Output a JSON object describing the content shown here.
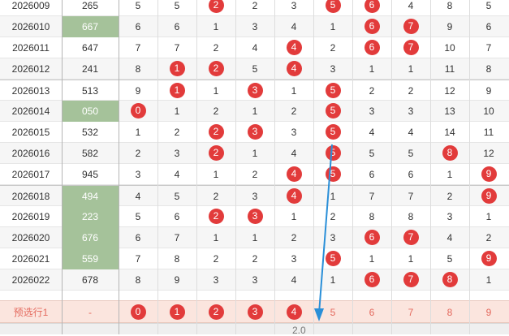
{
  "rows": [
    {
      "issue": "2026009",
      "sum": "265",
      "sum_hl": false,
      "digits": [
        "5",
        "5",
        "2",
        "2",
        "3",
        "5",
        "6",
        "4",
        "8",
        "5"
      ],
      "balls": [
        2,
        5,
        6
      ]
    },
    {
      "issue": "2026010",
      "sum": "667",
      "sum_hl": true,
      "digits": [
        "6",
        "6",
        "1",
        "3",
        "4",
        "1",
        "6",
        "7",
        "9",
        "6"
      ],
      "balls": [
        6,
        7
      ]
    },
    {
      "issue": "2026011",
      "sum": "647",
      "sum_hl": false,
      "digits": [
        "7",
        "7",
        "2",
        "4",
        "4",
        "2",
        "6",
        "7",
        "10",
        "7"
      ],
      "balls": [
        4,
        6,
        7
      ]
    },
    {
      "issue": "2026012",
      "sum": "241",
      "sum_hl": false,
      "digits": [
        "8",
        "1",
        "2",
        "5",
        "4",
        "3",
        "1",
        "1",
        "11",
        "8"
      ],
      "balls": [
        1,
        2,
        4
      ]
    },
    {
      "issue": "2026013",
      "sum": "513",
      "sum_hl": false,
      "digits": [
        "9",
        "1",
        "1",
        "3",
        "1",
        "5",
        "2",
        "2",
        "12",
        "9"
      ],
      "balls": [
        1,
        3,
        5
      ]
    },
    {
      "issue": "2026014",
      "sum": "050",
      "sum_hl": true,
      "digits": [
        "0",
        "1",
        "2",
        "1",
        "2",
        "5",
        "3",
        "3",
        "13",
        "10"
      ],
      "balls": [
        0,
        5
      ]
    },
    {
      "issue": "2026015",
      "sum": "532",
      "sum_hl": false,
      "digits": [
        "1",
        "2",
        "2",
        "3",
        "3",
        "5",
        "4",
        "4",
        "14",
        "11"
      ],
      "balls": [
        2,
        3,
        5
      ]
    },
    {
      "issue": "2026016",
      "sum": "582",
      "sum_hl": false,
      "digits": [
        "2",
        "3",
        "2",
        "1",
        "4",
        "5",
        "5",
        "5",
        "8",
        "12"
      ],
      "balls": [
        2,
        5,
        8
      ]
    },
    {
      "issue": "2026017",
      "sum": "945",
      "sum_hl": false,
      "digits": [
        "3",
        "4",
        "1",
        "2",
        "4",
        "5",
        "6",
        "6",
        "1",
        "9"
      ],
      "balls": [
        4,
        5,
        9
      ]
    },
    {
      "issue": "2026018",
      "sum": "494",
      "sum_hl": true,
      "digits": [
        "4",
        "5",
        "2",
        "3",
        "4",
        "1",
        "7",
        "7",
        "2",
        "9"
      ],
      "balls": [
        4,
        9
      ]
    },
    {
      "issue": "2026019",
      "sum": "223",
      "sum_hl": true,
      "digits": [
        "5",
        "6",
        "2",
        "3",
        "1",
        "2",
        "8",
        "8",
        "3",
        "1"
      ],
      "balls": [
        2,
        3
      ]
    },
    {
      "issue": "2026020",
      "sum": "676",
      "sum_hl": true,
      "digits": [
        "6",
        "7",
        "1",
        "1",
        "2",
        "3",
        "6",
        "7",
        "4",
        "2"
      ],
      "balls": [
        6,
        7
      ]
    },
    {
      "issue": "2026021",
      "sum": "559",
      "sum_hl": true,
      "digits": [
        "7",
        "8",
        "2",
        "2",
        "3",
        "5",
        "1",
        "1",
        "5",
        "9"
      ],
      "balls": [
        5,
        9
      ]
    },
    {
      "issue": "2026022",
      "sum": "678",
      "sum_hl": false,
      "digits": [
        "8",
        "9",
        "3",
        "3",
        "4",
        "1",
        "6",
        "7",
        "8",
        "1"
      ],
      "balls": [
        6,
        7,
        8
      ]
    }
  ],
  "prediction": {
    "label": "预选行1",
    "sum": "-",
    "digits": [
      "0",
      "1",
      "2",
      "3",
      "4",
      "5",
      "6",
      "7",
      "8",
      "9"
    ],
    "balls": [
      0,
      1,
      2,
      3,
      4
    ]
  },
  "footer": {
    "text": "2.0"
  },
  "colors": {
    "ball": "#e23b3b",
    "highlight": "#a5c29a",
    "prediction_bg": "#fbe5de",
    "trend_line": "#2a8fd8"
  }
}
